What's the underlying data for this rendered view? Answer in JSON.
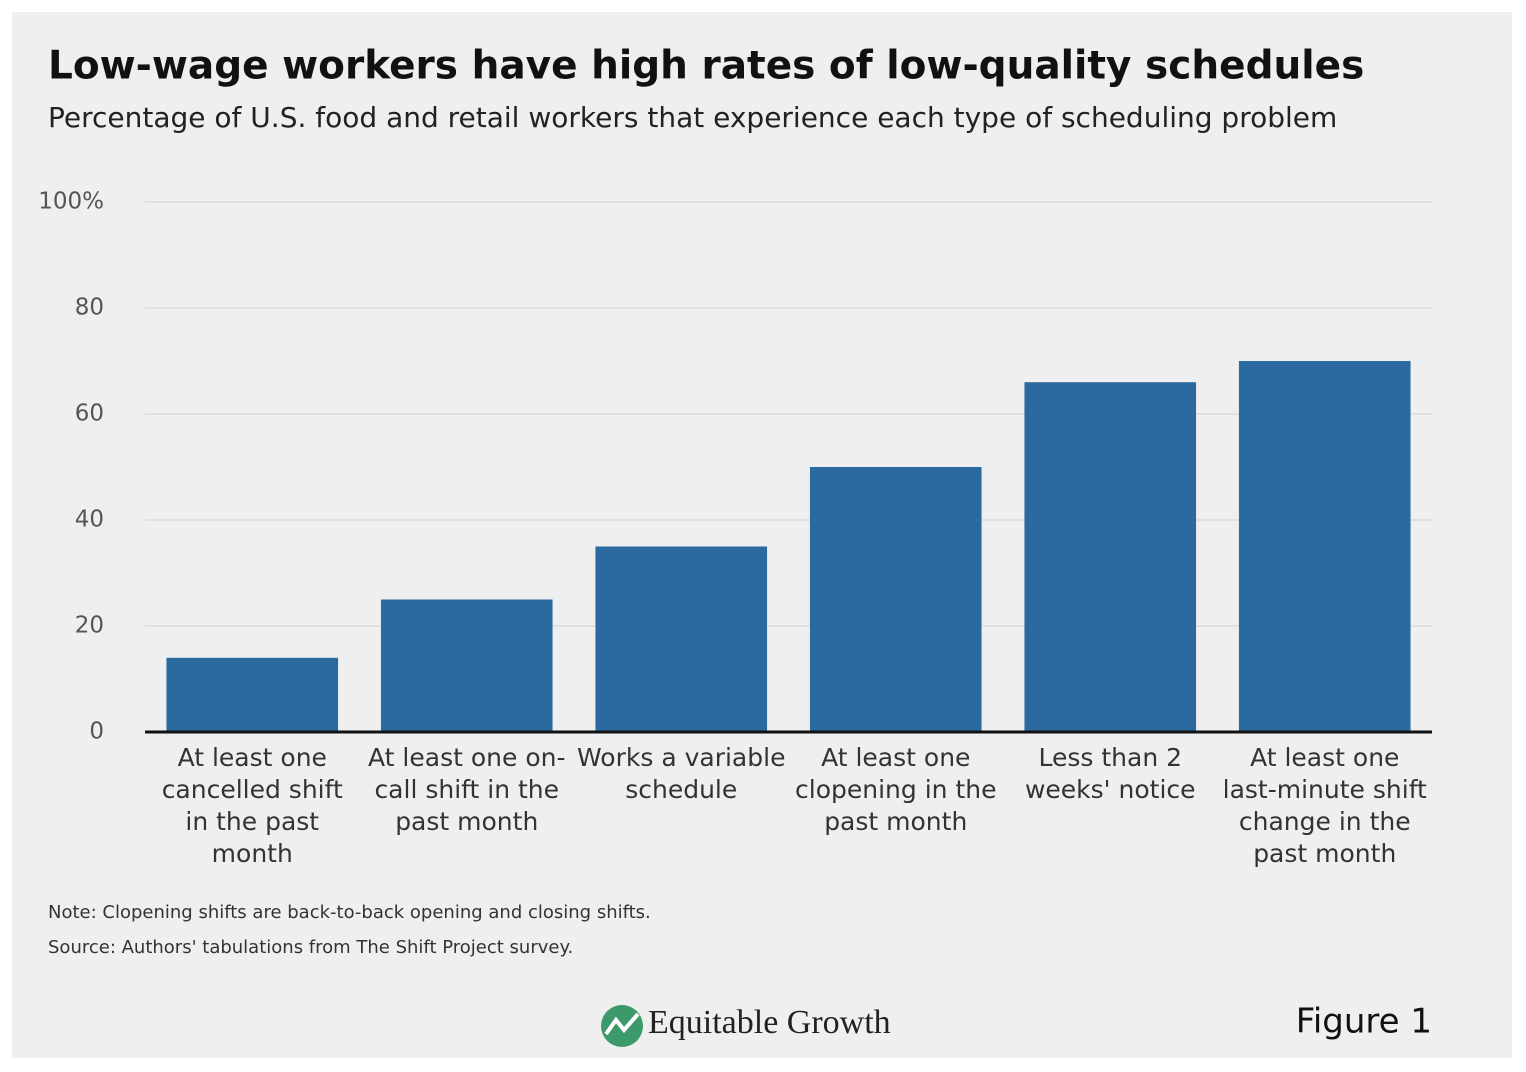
{
  "chart_data": {
    "type": "bar",
    "title": "Low-wage workers have high rates of low-quality schedules",
    "subtitle": "Percentage of U.S. food and retail workers that experience each type of scheduling problem",
    "categories": [
      "At least one cancelled shift in the past month",
      "At least one on-call shift in the past month",
      "Works a variable schedule",
      "At least one clopening in the past month",
      "Less than 2 weeks' notice",
      "At least one last-minute shift change in the past month"
    ],
    "values": [
      14,
      25,
      35,
      50,
      66,
      70
    ],
    "color": "#2b6a9f",
    "ylim": [
      0,
      100
    ],
    "yticks": [
      0,
      20,
      40,
      60,
      80,
      {
        "value": 100,
        "label": "100%"
      }
    ],
    "grid": true,
    "note": "Note: Clopening shifts are back-to-back opening and closing shifts.",
    "source": "Source: Authors' tabulations from The Shift Project survey.",
    "brand": "Equitable Growth",
    "figure_label": "Figure 1"
  }
}
